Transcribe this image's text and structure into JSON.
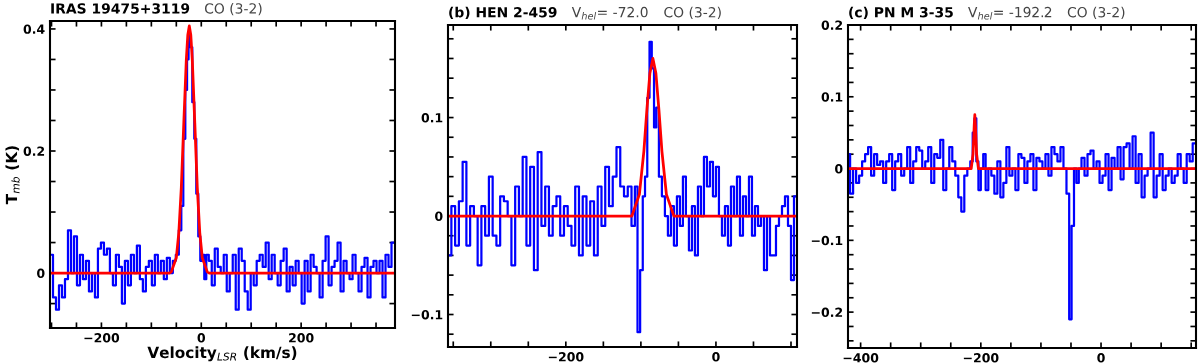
{
  "chart_data": [
    {
      "type": "step",
      "title": "IRAS 19475+3119",
      "annotations": [
        "CO (3-2)"
      ],
      "xlabel": "Velocity$_{LSR}$ (km/s)",
      "ylabel": "T$_{mb}$ (K)",
      "xlim": [
        -303,
        388
      ],
      "ylim": [
        -0.09,
        0.413
      ],
      "xticks": [
        {
          "value": -300,
          "label": null
        },
        {
          "value": -250,
          "label": null
        },
        {
          "value": -200,
          "label": "−200"
        },
        {
          "value": -150,
          "label": null
        },
        {
          "value": -100,
          "label": null
        },
        {
          "value": -50,
          "label": null
        },
        0,
        {
          "value": 50,
          "label": null
        },
        {
          "value": 100,
          "label": null
        },
        {
          "value": 150,
          "label": null
        },
        200,
        {
          "value": 250,
          "label": null
        },
        {
          "value": 300,
          "label": null
        },
        {
          "value": 350,
          "label": null
        }
      ],
      "yticks": [
        {
          "value": -0.05,
          "label": null
        },
        0,
        {
          "value": 0.05,
          "label": null
        },
        {
          "value": 0.1,
          "label": null
        },
        {
          "value": 0.15,
          "label": null
        },
        0.2,
        {
          "value": 0.25,
          "label": null
        },
        {
          "value": 0.3,
          "label": null
        },
        {
          "value": 0.35,
          "label": null
        },
        0.4
      ],
      "grid": false,
      "line_style": "solid",
      "series": [
        {
          "color": "#0000ff",
          "x": [
            -300,
            -294,
            -288,
            -282,
            -276,
            -270,
            -264,
            -258,
            -252,
            -246,
            -240,
            -234,
            -228,
            -222,
            -216,
            -210,
            -204,
            -198,
            -192,
            -186,
            -180,
            -174,
            -168,
            -162,
            -156,
            -150,
            -144,
            -138,
            -132,
            -126,
            -120,
            -114,
            -108,
            -102,
            -96,
            -90,
            -84,
            -78,
            -72,
            -66,
            -60,
            -54,
            -48,
            -42,
            -38,
            -34,
            -30,
            -27,
            -24,
            -20,
            -16,
            -12,
            -8,
            -4,
            0,
            4,
            8,
            12,
            18,
            24,
            30,
            36,
            42,
            48,
            54,
            60,
            66,
            72,
            78,
            84,
            90,
            96,
            102,
            108,
            114,
            120,
            126,
            132,
            138,
            144,
            150,
            156,
            162,
            168,
            174,
            180,
            186,
            192,
            198,
            204,
            210,
            216,
            222,
            228,
            234,
            240,
            246,
            252,
            258,
            264,
            270,
            276,
            282,
            288,
            294,
            300,
            306,
            312,
            318,
            324,
            330,
            336,
            342,
            348,
            354,
            360,
            366,
            372,
            378,
            384
          ],
          "values": [
            0.03,
            -0.04,
            -0.06,
            -0.02,
            -0.04,
            -0.01,
            0.07,
            0.0,
            0.06,
            -0.02,
            0.03,
            -0.01,
            0.02,
            -0.03,
            0.0,
            -0.04,
            0.04,
            0.05,
            0.03,
            0.04,
            0.0,
            -0.02,
            0.03,
            0.01,
            -0.05,
            0.02,
            -0.02,
            0.03,
            0.0,
            0.045,
            -0.01,
            -0.03,
            0.01,
            0.02,
            -0.02,
            0.03,
            0.0,
            0.02,
            -0.01,
            0.025,
            0.0,
            0.02,
            0.03,
            0.07,
            0.11,
            0.22,
            0.3,
            0.35,
            0.39,
            0.37,
            0.28,
            0.22,
            0.13,
            0.06,
            0.02,
            0.03,
            -0.01,
            0.03,
            0.02,
            -0.02,
            0.04,
            0.01,
            0.0,
            0.03,
            -0.03,
            0.0,
            0.03,
            -0.06,
            0.04,
            0.02,
            -0.03,
            -0.06,
            0.0,
            -0.02,
            0.02,
            0.03,
            0.01,
            0.05,
            -0.01,
            0.03,
            0.0,
            -0.02,
            0.02,
            0.04,
            -0.03,
            0.01,
            -0.02,
            0.02,
            0.0,
            -0.05,
            0.02,
            -0.03,
            0.03,
            0.01,
            0.0,
            -0.04,
            0.02,
            0.06,
            -0.02,
            0.01,
            0.02,
            0.05,
            -0.03,
            0.02,
            0.0,
            -0.01,
            0.03,
            0.0,
            -0.03,
            0.01,
            0.025,
            -0.04,
            0.01,
            0.02,
            0.0,
            0.02,
            -0.04,
            0.03,
            0.01,
            0.05
          ]
        },
        {
          "type": "line",
          "color": "#ff0000",
          "x": [
            -303,
            -64,
            -60,
            -50,
            -45,
            -40,
            -35,
            -30,
            -27,
            -24,
            -21,
            -18,
            -13,
            -8,
            -3,
            2,
            12,
            16,
            388
          ],
          "values": [
            0,
            0,
            0.002,
            0.025,
            0.066,
            0.14,
            0.246,
            0.349,
            0.39,
            0.405,
            0.39,
            0.349,
            0.246,
            0.14,
            0.066,
            0.025,
            0.002,
            0,
            0
          ]
        }
      ]
    },
    {
      "type": "step",
      "title": "(b) HEN 2-459",
      "subtitle": "V$_{hel}$= -72.0",
      "annotations": [
        "CO (3-2)"
      ],
      "xlim": [
        -357,
        108
      ],
      "ylim": [
        -0.133,
        0.194
      ],
      "xticks": [
        {
          "value": -350,
          "label": null
        },
        {
          "value": -300,
          "label": null
        },
        {
          "value": -250,
          "label": null
        },
        {
          "value": -200,
          "label": "−200"
        },
        {
          "value": -150,
          "label": null
        },
        {
          "value": -100,
          "label": null
        },
        {
          "value": -50,
          "label": null
        },
        0,
        {
          "value": 50,
          "label": null
        },
        {
          "value": 100,
          "label": null
        }
      ],
      "yticks": [
        {
          "value": -0.12,
          "label": null
        },
        {
          "value": -0.1,
          "label": "−0.1"
        },
        {
          "value": -0.08,
          "label": null
        },
        {
          "value": -0.06,
          "label": null
        },
        {
          "value": -0.04,
          "label": null
        },
        {
          "value": -0.02,
          "label": null
        },
        0,
        {
          "value": 0.02,
          "label": null
        },
        {
          "value": 0.04,
          "label": null
        },
        {
          "value": 0.06,
          "label": null
        },
        {
          "value": 0.08,
          "label": null
        },
        0.1,
        {
          "value": 0.12,
          "label": null
        },
        {
          "value": 0.14,
          "label": null
        },
        {
          "value": 0.16,
          "label": null
        },
        {
          "value": 0.18,
          "label": null
        }
      ],
      "grid": false,
      "line_style": "solid",
      "series": [
        {
          "color": "#0000ff",
          "x": [
            -355,
            -350,
            -345,
            -340,
            -335,
            -330,
            -325,
            -320,
            -315,
            -310,
            -305,
            -300,
            -295,
            -290,
            -285,
            -280,
            -275,
            -270,
            -265,
            -260,
            -255,
            -250,
            -245,
            -240,
            -235,
            -230,
            -225,
            -220,
            -215,
            -210,
            -205,
            -200,
            -195,
            -190,
            -185,
            -180,
            -175,
            -170,
            -165,
            -160,
            -155,
            -150,
            -145,
            -140,
            -135,
            -130,
            -125,
            -120,
            -115,
            -110,
            -106,
            -103,
            -99,
            -96,
            -93,
            -90,
            -87,
            -84,
            -81,
            -78,
            -74,
            -70,
            -66,
            -62,
            -58,
            -54,
            -50,
            -46,
            -42,
            -38,
            -34,
            -30,
            -26,
            -22,
            -18,
            -14,
            -10,
            -6,
            -2,
            2,
            6,
            10,
            14,
            18,
            22,
            26,
            30,
            34,
            38,
            42,
            46,
            50,
            54,
            58,
            62,
            66,
            70,
            74,
            78,
            82,
            86,
            90,
            94,
            98,
            102,
            106
          ],
          "values": [
            -0.04,
            0.01,
            -0.03,
            0.015,
            0.055,
            -0.03,
            0.01,
            0.0,
            -0.05,
            0.01,
            -0.02,
            0.04,
            -0.02,
            -0.03,
            0.02,
            0.015,
            0.0,
            -0.05,
            0.03,
            0.0,
            0.06,
            -0.03,
            0.05,
            -0.055,
            0.065,
            -0.01,
            0.03,
            -0.02,
            0.01,
            0.02,
            -0.02,
            0.01,
            -0.01,
            -0.03,
            0.03,
            -0.04,
            0.02,
            -0.03,
            0.015,
            -0.04,
            0.03,
            -0.01,
            0.05,
            0.01,
            0.04,
            0.07,
            0.03,
            0.02,
            0.03,
            -0.01,
            0.03,
            -0.118,
            -0.055,
            0.02,
            0.04,
            0.12,
            0.177,
            0.15,
            0.09,
            0.11,
            0.04,
            0.02,
            0.0,
            -0.02,
            0.01,
            -0.03,
            0.02,
            -0.01,
            0.04,
            0.0,
            -0.035,
            0.01,
            -0.04,
            0.03,
            0.0,
            0.06,
            0.03,
            0.055,
            0.02,
            0.05,
            0.0,
            -0.02,
            0.01,
            -0.03,
            0.03,
            0.0,
            0.04,
            -0.02,
            0.02,
            0.0,
            0.04,
            -0.02,
            0.01,
            -0.01,
            0.0,
            -0.055,
            0.0,
            -0.04,
            -0.04,
            -0.01,
            0.0,
            0.01,
            0.02,
            -0.01,
            -0.065,
            0.02
          ]
        },
        {
          "type": "line",
          "color": "#ff0000",
          "x": [
            -357,
            -112,
            -102,
            -96,
            -92,
            -88,
            -84,
            -80,
            -76,
            -72,
            -66,
            -56,
            108
          ],
          "values": [
            0,
            0,
            0.022,
            0.066,
            0.108,
            0.145,
            0.16,
            0.145,
            0.108,
            0.066,
            0.022,
            0,
            0
          ]
        }
      ]
    },
    {
      "type": "step",
      "title": "(c) PN M 3-35",
      "subtitle": "V$_{hel}$= -192.2",
      "annotations": [
        "CO (3-2)"
      ],
      "xlim": [
        -421,
        158
      ],
      "ylim": [
        -0.25,
        0.2
      ],
      "xticks": [
        {
          "value": -400,
          "label": "−400"
        },
        {
          "value": -350,
          "label": null
        },
        {
          "value": -300,
          "label": null
        },
        {
          "value": -250,
          "label": null
        },
        {
          "value": -200,
          "label": "−200"
        },
        {
          "value": -150,
          "label": null
        },
        {
          "value": -100,
          "label": null
        },
        {
          "value": -50,
          "label": null
        },
        0,
        {
          "value": 50,
          "label": null
        },
        {
          "value": 100,
          "label": null
        },
        {
          "value": 150,
          "label": null
        }
      ],
      "yticks": [
        {
          "value": -0.24,
          "label": null
        },
        {
          "value": -0.22,
          "label": null
        },
        {
          "value": -0.2,
          "label": "−0.2"
        },
        {
          "value": -0.18,
          "label": null
        },
        {
          "value": -0.16,
          "label": null
        },
        {
          "value": -0.14,
          "label": null
        },
        {
          "value": -0.12,
          "label": null
        },
        {
          "value": -0.1,
          "label": "−0.1"
        },
        {
          "value": -0.08,
          "label": null
        },
        {
          "value": -0.06,
          "label": null
        },
        {
          "value": -0.04,
          "label": null
        },
        {
          "value": -0.02,
          "label": null
        },
        0,
        {
          "value": 0.02,
          "label": null
        },
        {
          "value": 0.04,
          "label": null
        },
        {
          "value": 0.06,
          "label": null
        },
        {
          "value": 0.08,
          "label": null
        },
        0.1,
        {
          "value": 0.12,
          "label": null
        },
        {
          "value": 0.14,
          "label": null
        },
        {
          "value": 0.16,
          "label": null
        },
        {
          "value": 0.18,
          "label": null
        },
        0.2
      ],
      "grid": false,
      "line_style": "solid",
      "series": [
        {
          "color": "#0000ff",
          "x": [
            -420,
            -415,
            -410,
            -405,
            -400,
            -395,
            -390,
            -385,
            -380,
            -375,
            -370,
            -365,
            -360,
            -355,
            -350,
            -345,
            -340,
            -335,
            -330,
            -325,
            -320,
            -315,
            -310,
            -305,
            -300,
            -295,
            -290,
            -285,
            -280,
            -275,
            -270,
            -265,
            -260,
            -255,
            -250,
            -245,
            -240,
            -235,
            -230,
            -225,
            -220,
            -215,
            -212,
            -209,
            -206,
            -202,
            -198,
            -194,
            -190,
            -185,
            -180,
            -175,
            -170,
            -165,
            -160,
            -155,
            -150,
            -145,
            -140,
            -135,
            -130,
            -125,
            -120,
            -115,
            -110,
            -105,
            -100,
            -95,
            -90,
            -85,
            -80,
            -75,
            -70,
            -65,
            -60,
            -55,
            -51,
            -47,
            -43,
            -39,
            -35,
            -30,
            -25,
            -20,
            -15,
            -10,
            -5,
            0,
            5,
            10,
            15,
            20,
            25,
            30,
            35,
            40,
            45,
            50,
            55,
            60,
            65,
            70,
            75,
            80,
            85,
            90,
            95,
            100,
            105,
            110,
            115,
            120,
            125,
            130,
            135,
            140,
            145,
            150,
            155
          ],
          "values": [
            0.02,
            -0.035,
            0.0,
            -0.02,
            -0.01,
            0.01,
            0.02,
            0.03,
            -0.01,
            0.02,
            0.005,
            0.01,
            -0.02,
            0.01,
            0.02,
            -0.03,
            0.01,
            0.02,
            -0.01,
            0.0,
            0.03,
            -0.02,
            0.01,
            0.03,
            0.025,
            0.0,
            0.01,
            0.03,
            -0.02,
            0.02,
            0.015,
            0.04,
            -0.03,
            0.0,
            0.03,
            0.01,
            -0.01,
            -0.04,
            -0.06,
            -0.01,
            0.0,
            0.01,
            0.05,
            0.07,
            0.01,
            -0.03,
            0.0,
            0.02,
            -0.03,
            0.0,
            -0.01,
            -0.035,
            0.01,
            -0.04,
            -0.02,
            0.03,
            -0.01,
            0.0,
            -0.03,
            0.02,
            0.015,
            -0.02,
            0.01,
            0.02,
            -0.03,
            0.015,
            0.01,
            0.0,
            0.02,
            -0.01,
            0.03,
            0.02,
            0.01,
            0.03,
            0.0,
            -0.035,
            -0.21,
            -0.08,
            0.0,
            -0.02,
            0.0,
            0.015,
            -0.01,
            0.02,
            0.025,
            0.0,
            0.01,
            -0.02,
            -0.01,
            0.02,
            -0.03,
            0.015,
            0.0,
            0.03,
            -0.015,
            0.03,
            0.035,
            0.0,
            0.045,
            -0.02,
            0.02,
            -0.04,
            -0.01,
            0.0,
            0.05,
            -0.04,
            -0.01,
            0.02,
            -0.03,
            -0.01,
            0.0,
            -0.02,
            -0.01,
            0.02,
            0.0,
            -0.02,
            0.02,
            0.01,
            0.035
          ]
        },
        {
          "type": "line",
          "color": "#ff0000",
          "x": [
            -421,
            -216,
            -213,
            -211,
            -210,
            -209,
            -207,
            -204,
            158
          ],
          "values": [
            0,
            0,
            0.02,
            0.06,
            0.075,
            0.06,
            0.02,
            0,
            0
          ]
        }
      ]
    }
  ]
}
